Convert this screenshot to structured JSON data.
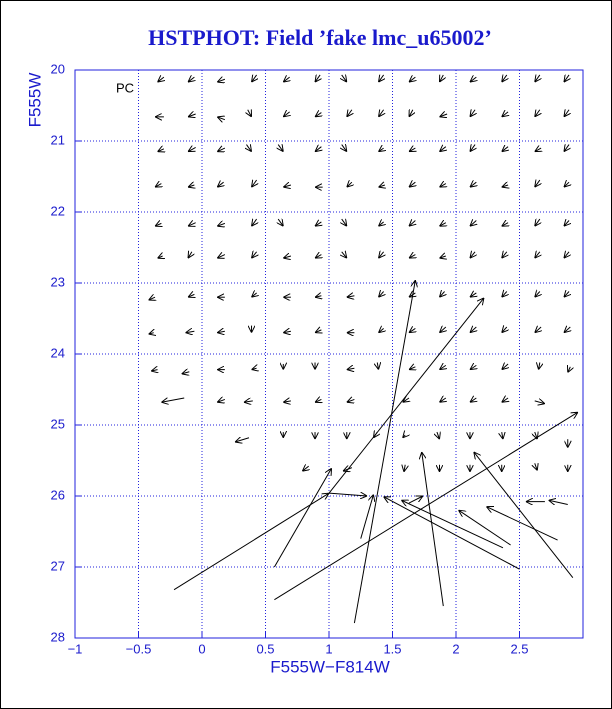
{
  "chart_data": {
    "type": "vector",
    "title": "HSTPHOT: Field ’fake lmc_u65002’",
    "x_label": "F555W−F814W",
    "y_label": "F555W",
    "annotation": "PC",
    "xlim": [
      -1,
      3
    ],
    "ylim": [
      28,
      20
    ],
    "xticks": [
      {
        "value": -1,
        "label": "−1"
      },
      {
        "value": -0.5,
        "label": "−0.5"
      },
      0,
      0.5,
      1,
      1.5,
      2,
      2.5
    ],
    "yticks": [
      20,
      21,
      22,
      23,
      24,
      25,
      26,
      27,
      28
    ],
    "grid": true,
    "color": "#000000",
    "grid_color": "#2222dd",
    "arrows": [
      [
        -0.3,
        20.1,
        -0.35,
        20.17
      ],
      [
        -0.06,
        20.1,
        -0.11,
        20.17
      ],
      [
        0.18,
        20.13,
        0.12,
        20.17
      ],
      [
        0.43,
        20.07,
        0.39,
        20.17
      ],
      [
        0.69,
        20.1,
        0.64,
        20.17
      ],
      [
        0.93,
        20.07,
        0.89,
        20.17
      ],
      [
        1.1,
        20.07,
        1.14,
        20.17
      ],
      [
        1.43,
        20.07,
        1.39,
        20.17
      ],
      [
        1.68,
        20.1,
        1.63,
        20.17
      ],
      [
        1.9,
        20.07,
        1.87,
        20.17
      ],
      [
        2.16,
        20.1,
        2.11,
        20.17
      ],
      [
        2.4,
        20.07,
        2.36,
        20.17
      ],
      [
        2.66,
        20.07,
        2.62,
        20.17
      ],
      [
        2.89,
        20.07,
        2.85,
        20.17
      ],
      [
        -0.3,
        20.66,
        -0.37,
        20.66
      ],
      [
        -0.05,
        20.62,
        -0.11,
        20.66
      ],
      [
        0.18,
        20.7,
        0.12,
        20.66
      ],
      [
        0.36,
        20.56,
        0.39,
        20.66
      ],
      [
        0.69,
        20.59,
        0.64,
        20.66
      ],
      [
        0.94,
        20.6,
        0.89,
        20.66
      ],
      [
        1.18,
        20.56,
        1.14,
        20.66
      ],
      [
        1.43,
        20.56,
        1.39,
        20.66
      ],
      [
        1.66,
        20.56,
        1.63,
        20.66
      ],
      [
        1.93,
        20.62,
        1.87,
        20.66
      ],
      [
        2.15,
        20.56,
        2.11,
        20.66
      ],
      [
        2.41,
        20.59,
        2.36,
        20.66
      ],
      [
        2.66,
        20.56,
        2.62,
        20.66
      ],
      [
        2.89,
        20.56,
        2.85,
        20.66
      ],
      [
        -0.3,
        21.11,
        -0.35,
        21.15
      ],
      [
        -0.05,
        21.09,
        -0.11,
        21.15
      ],
      [
        0.18,
        21.1,
        0.12,
        21.15
      ],
      [
        0.35,
        21.05,
        0.39,
        21.15
      ],
      [
        0.6,
        21.05,
        0.64,
        21.15
      ],
      [
        0.94,
        21.08,
        0.89,
        21.15
      ],
      [
        1.1,
        21.05,
        1.14,
        21.15
      ],
      [
        1.43,
        21.1,
        1.39,
        21.15
      ],
      [
        1.68,
        21.1,
        1.63,
        21.15
      ],
      [
        1.92,
        21.08,
        1.87,
        21.15
      ],
      [
        2.15,
        21.05,
        2.11,
        21.15
      ],
      [
        2.41,
        21.08,
        2.36,
        21.15
      ],
      [
        2.67,
        21.1,
        2.62,
        21.15
      ],
      [
        2.89,
        21.05,
        2.85,
        21.15
      ],
      [
        -0.32,
        21.6,
        -0.37,
        21.65
      ],
      [
        -0.06,
        21.62,
        -0.11,
        21.65
      ],
      [
        0.17,
        21.58,
        0.12,
        21.65
      ],
      [
        0.43,
        21.55,
        0.39,
        21.65
      ],
      [
        0.7,
        21.62,
        0.64,
        21.65
      ],
      [
        0.95,
        21.65,
        0.89,
        21.65
      ],
      [
        1.18,
        21.58,
        1.14,
        21.65
      ],
      [
        1.44,
        21.62,
        1.39,
        21.65
      ],
      [
        1.68,
        21.58,
        1.63,
        21.65
      ],
      [
        1.92,
        21.6,
        1.87,
        21.65
      ],
      [
        2.16,
        21.58,
        2.11,
        21.65
      ],
      [
        2.41,
        21.62,
        2.36,
        21.65
      ],
      [
        2.66,
        21.55,
        2.62,
        21.65
      ],
      [
        2.89,
        21.58,
        2.85,
        21.65
      ],
      [
        -0.32,
        22.16,
        -0.37,
        22.2
      ],
      [
        -0.05,
        22.15,
        -0.11,
        22.2
      ],
      [
        0.18,
        22.16,
        0.12,
        22.2
      ],
      [
        0.43,
        22.1,
        0.39,
        22.2
      ],
      [
        0.6,
        22.1,
        0.64,
        22.2
      ],
      [
        0.94,
        22.14,
        0.89,
        22.2
      ],
      [
        1.1,
        22.1,
        1.14,
        22.2
      ],
      [
        1.43,
        22.14,
        1.39,
        22.2
      ],
      [
        1.68,
        22.12,
        1.63,
        22.2
      ],
      [
        1.92,
        22.15,
        1.87,
        22.2
      ],
      [
        2.16,
        22.12,
        2.11,
        22.2
      ],
      [
        2.41,
        22.15,
        2.36,
        22.2
      ],
      [
        2.66,
        22.1,
        2.62,
        22.2
      ],
      [
        2.89,
        22.12,
        2.85,
        22.2
      ],
      [
        -0.31,
        22.62,
        -0.35,
        22.65
      ],
      [
        -0.08,
        22.56,
        -0.11,
        22.65
      ],
      [
        0.18,
        22.6,
        0.12,
        22.65
      ],
      [
        0.43,
        22.56,
        0.39,
        22.65
      ],
      [
        0.7,
        22.62,
        0.64,
        22.65
      ],
      [
        0.94,
        22.6,
        0.89,
        22.65
      ],
      [
        1.1,
        22.56,
        1.14,
        22.65
      ],
      [
        1.43,
        22.56,
        1.39,
        22.65
      ],
      [
        1.68,
        22.6,
        1.63,
        22.65
      ],
      [
        1.92,
        22.62,
        1.87,
        22.65
      ],
      [
        2.15,
        22.56,
        2.11,
        22.65
      ],
      [
        2.4,
        22.56,
        2.36,
        22.65
      ],
      [
        2.66,
        22.56,
        2.62,
        22.65
      ],
      [
        2.89,
        22.56,
        2.85,
        22.65
      ],
      [
        -0.37,
        23.2,
        -0.42,
        23.24
      ],
      [
        -0.06,
        23.16,
        -0.11,
        23.2
      ],
      [
        0.18,
        23.2,
        0.12,
        23.2
      ],
      [
        0.43,
        23.14,
        0.39,
        23.2
      ],
      [
        0.7,
        23.2,
        0.64,
        23.2
      ],
      [
        0.94,
        23.18,
        0.89,
        23.2
      ],
      [
        1.2,
        23.18,
        1.14,
        23.2
      ],
      [
        1.43,
        23.12,
        1.39,
        23.2
      ],
      [
        1.68,
        23.14,
        1.63,
        23.2
      ],
      [
        1.91,
        23.12,
        1.87,
        23.2
      ],
      [
        2.16,
        23.14,
        2.11,
        23.2
      ],
      [
        2.4,
        23.12,
        2.36,
        23.2
      ],
      [
        2.66,
        23.12,
        2.62,
        23.2
      ],
      [
        2.89,
        23.12,
        2.85,
        23.2
      ],
      [
        -0.38,
        23.7,
        -0.42,
        23.72
      ],
      [
        -0.06,
        23.68,
        -0.13,
        23.7
      ],
      [
        0.18,
        23.68,
        0.12,
        23.7
      ],
      [
        0.39,
        23.6,
        0.39,
        23.7
      ],
      [
        0.7,
        23.68,
        0.64,
        23.7
      ],
      [
        0.94,
        23.66,
        0.89,
        23.7
      ],
      [
        1.2,
        23.7,
        1.14,
        23.7
      ],
      [
        1.43,
        23.64,
        1.39,
        23.7
      ],
      [
        1.68,
        23.64,
        1.63,
        23.7
      ],
      [
        1.92,
        23.62,
        1.87,
        23.7
      ],
      [
        2.16,
        23.62,
        2.11,
        23.7
      ],
      [
        2.4,
        23.62,
        2.36,
        23.7
      ],
      [
        2.67,
        23.62,
        2.62,
        23.7
      ],
      [
        2.9,
        23.62,
        2.85,
        23.7
      ],
      [
        -0.35,
        24.22,
        -0.4,
        24.24
      ],
      [
        -0.1,
        24.25,
        -0.16,
        24.28
      ],
      [
        0.18,
        24.22,
        0.12,
        24.22
      ],
      [
        0.43,
        24.2,
        0.39,
        24.22
      ],
      [
        0.64,
        24.14,
        0.64,
        24.22
      ],
      [
        0.89,
        24.12,
        0.89,
        24.22
      ],
      [
        1.2,
        24.2,
        1.14,
        24.22
      ],
      [
        1.38,
        24.12,
        1.39,
        24.22
      ],
      [
        1.68,
        24.18,
        1.63,
        24.22
      ],
      [
        1.92,
        24.16,
        1.87,
        24.22
      ],
      [
        2.16,
        24.16,
        2.11,
        24.22
      ],
      [
        2.41,
        24.14,
        2.36,
        24.22
      ],
      [
        2.66,
        24.12,
        2.65,
        24.22
      ],
      [
        2.9,
        24.18,
        2.88,
        24.26
      ],
      [
        -0.14,
        24.62,
        -0.32,
        24.68
      ],
      [
        0.18,
        24.64,
        0.12,
        24.68
      ],
      [
        0.4,
        24.66,
        0.33,
        24.68
      ],
      [
        0.7,
        24.66,
        0.64,
        24.68
      ],
      [
        0.94,
        24.64,
        0.89,
        24.68
      ],
      [
        1.2,
        24.64,
        1.14,
        24.68
      ],
      [
        1.63,
        24.62,
        1.58,
        24.68
      ],
      [
        1.92,
        24.62,
        1.87,
        24.68
      ],
      [
        2.16,
        24.62,
        2.11,
        24.68
      ],
      [
        2.41,
        24.62,
        2.36,
        24.68
      ],
      [
        2.62,
        24.66,
        2.7,
        24.7
      ],
      [
        0.37,
        25.18,
        0.26,
        25.24
      ],
      [
        0.64,
        25.1,
        0.64,
        25.18
      ],
      [
        0.89,
        25.1,
        0.89,
        25.2
      ],
      [
        1.14,
        25.1,
        1.14,
        25.2
      ],
      [
        1.38,
        25.1,
        1.35,
        25.18
      ],
      [
        1.6,
        25.14,
        1.58,
        25.18
      ],
      [
        1.85,
        25.1,
        1.87,
        25.2
      ],
      [
        2.11,
        25.1,
        2.11,
        25.2
      ],
      [
        2.36,
        25.1,
        2.37,
        25.2
      ],
      [
        2.62,
        25.1,
        2.64,
        25.2
      ],
      [
        2.88,
        25.2,
        2.88,
        25.32
      ],
      [
        0.84,
        25.58,
        0.79,
        25.65
      ],
      [
        1.18,
        25.6,
        1.11,
        25.65
      ],
      [
        1.6,
        25.56,
        1.59,
        25.66
      ],
      [
        1.87,
        25.56,
        1.87,
        25.66
      ],
      [
        2.11,
        25.56,
        2.11,
        25.66
      ],
      [
        2.36,
        25.56,
        2.36,
        25.66
      ],
      [
        2.62,
        25.54,
        2.64,
        25.64
      ],
      [
        2.88,
        25.56,
        2.88,
        25.66
      ],
      [
        -0.22,
        27.32,
        1.0,
        25.96
      ],
      [
        0.57,
        27.0,
        1.02,
        25.61
      ],
      [
        0.57,
        27.46,
        2.96,
        24.82
      ],
      [
        1.2,
        27.79,
        1.68,
        22.96
      ],
      [
        1.0,
        25.96,
        2.22,
        23.21
      ],
      [
        1.9,
        27.55,
        1.73,
        25.38
      ],
      [
        2.5,
        27.03,
        1.43,
        26.01
      ],
      [
        2.43,
        26.69,
        2.02,
        26.2
      ],
      [
        2.8,
        26.62,
        2.24,
        26.15
      ],
      [
        2.92,
        27.15,
        2.14,
        25.38
      ],
      [
        2.37,
        26.73,
        1.57,
        26.06
      ],
      [
        1.0,
        25.96,
        1.3,
        26.0
      ],
      [
        1.25,
        26.6,
        1.35,
        25.98
      ],
      [
        1.63,
        26.1,
        1.74,
        26.0
      ],
      [
        2.88,
        26.12,
        2.73,
        26.06
      ],
      [
        2.7,
        26.08,
        2.55,
        26.08
      ]
    ]
  }
}
